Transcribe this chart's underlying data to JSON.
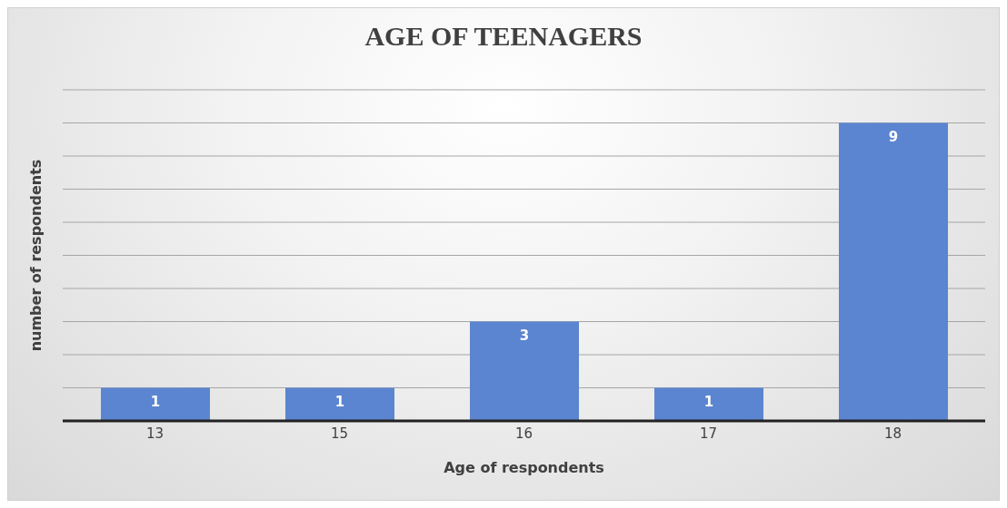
{
  "chart_data": {
    "type": "bar",
    "title": "AGE OF TEENAGERS",
    "xlabel": "Age of respondents",
    "ylabel": "number of respondents",
    "categories": [
      "13",
      "15",
      "16",
      "17",
      "18"
    ],
    "values": [
      1,
      1,
      3,
      1,
      9
    ],
    "color": "#5b85d0",
    "ylim": [
      0,
      10
    ],
    "yticks": [
      {
        "value": 0,
        "label": null
      },
      {
        "value": 1,
        "label": null
      },
      {
        "value": 2,
        "label": null
      },
      {
        "value": 3,
        "label": null
      },
      {
        "value": 4,
        "label": null
      },
      {
        "value": 5,
        "label": null
      },
      {
        "value": 6,
        "label": null
      },
      {
        "value": 7,
        "label": null
      },
      {
        "value": 8,
        "label": null
      },
      {
        "value": 9,
        "label": null
      },
      {
        "value": 10,
        "label": null
      }
    ],
    "grid": "y",
    "tick_labels": "x",
    "data_labels": true,
    "legend": false
  }
}
